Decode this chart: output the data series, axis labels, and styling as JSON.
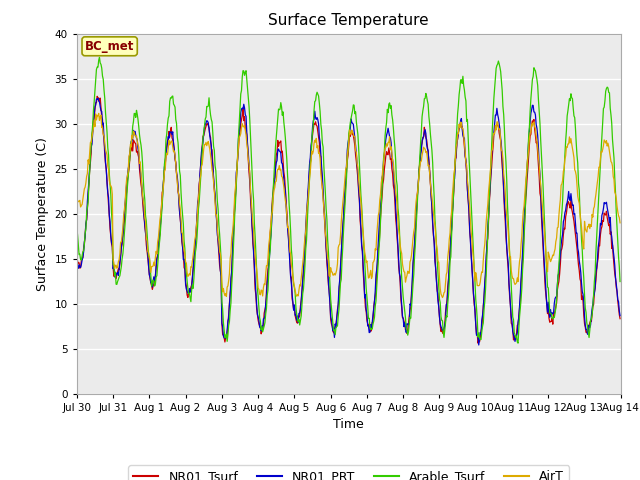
{
  "title": "Surface Temperature",
  "xlabel": "Time",
  "ylabel": "Surface Temperature (C)",
  "ylim": [
    0,
    40
  ],
  "yticks": [
    0,
    5,
    10,
    15,
    20,
    25,
    30,
    35,
    40
  ],
  "xtick_labels": [
    "Jul 30",
    "Jul 31",
    "Aug 1",
    "Aug 2",
    "Aug 3",
    "Aug 4",
    "Aug 5",
    "Aug 6",
    "Aug 7",
    "Aug 8",
    "Aug 9",
    "Aug 10",
    "Aug 11",
    "Aug 12",
    "Aug 13",
    "Aug 14"
  ],
  "colors": {
    "NR01_Tsurf": "#cc0000",
    "NR01_PRT": "#0000cc",
    "Arable_Tsurf": "#33cc00",
    "AirT": "#ddaa00"
  },
  "annotation_text": "BC_met",
  "annotation_color": "#880000",
  "annotation_bg": "#ffffbb",
  "annotation_edge": "#999900",
  "plot_bg": "#ebebeb",
  "fig_bg": "#ffffff",
  "grid_color": "#ffffff",
  "legend_entries": [
    "NR01_Tsurf",
    "NR01_PRT",
    "Arable_Tsurf",
    "AirT"
  ],
  "nr01_mins": [
    14,
    13,
    12,
    11,
    6,
    7,
    8,
    7,
    7,
    7,
    7,
    6,
    6,
    8,
    7
  ],
  "nr01_maxs": [
    33,
    28,
    29,
    30,
    31,
    28,
    30,
    29,
    27,
    29,
    30,
    30,
    30,
    21,
    20
  ],
  "prt_mins": [
    14,
    13,
    12,
    11,
    6,
    7,
    8,
    7,
    7,
    7,
    7,
    6,
    6,
    9,
    7
  ],
  "prt_maxs": [
    33,
    29,
    29,
    30,
    32,
    27,
    31,
    30,
    29,
    29,
    30,
    31,
    32,
    22,
    21
  ],
  "arable_mins": [
    15,
    12,
    12,
    11,
    6,
    7,
    8,
    7,
    7,
    7,
    7,
    6,
    6,
    8,
    7
  ],
  "arable_maxs": [
    37,
    31,
    33,
    32,
    36,
    32,
    33,
    32,
    32,
    33,
    35,
    37,
    36,
    33,
    34
  ],
  "air_mins": [
    21,
    14,
    14,
    13,
    11,
    11,
    11,
    13,
    13,
    13,
    11,
    12,
    12,
    15,
    18
  ],
  "air_maxs": [
    31,
    29,
    28,
    28,
    30,
    25,
    28,
    29,
    28,
    27,
    30,
    30,
    30,
    28,
    28
  ]
}
